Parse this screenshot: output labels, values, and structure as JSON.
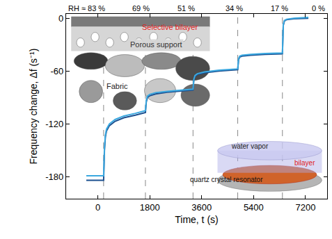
{
  "chart_data": {
    "type": "line",
    "x_label": "Time, t (s)",
    "y_label": "Frequency change, Δf (s⁻¹)",
    "x": [
      -400,
      200,
      230,
      260,
      300,
      400,
      600,
      900,
      1300,
      1650,
      1680,
      1720,
      1800,
      2000,
      2400,
      2900,
      3300,
      3330,
      3370,
      3450,
      3700,
      4200,
      4850,
      4880,
      4920,
      5000,
      5300,
      5800,
      6400,
      6430,
      6470,
      6550,
      6800,
      7300
    ],
    "series": [
      {
        "color": "#1b4f8f",
        "values": [
          -184,
          -184,
          -150,
          -135,
          -128,
          -122,
          -117,
          -113,
          -110,
          -107,
          -95,
          -90,
          -88,
          -86,
          -84,
          -82.5,
          -81.5,
          -70,
          -66,
          -64,
          -62,
          -60,
          -58.5,
          -47,
          -44,
          -43,
          -42,
          -41,
          -40.5,
          -8,
          -3,
          -1.5,
          -0.5,
          0
        ]
      },
      {
        "color": "#3aa8e0",
        "values": [
          -179,
          -179,
          -147,
          -133,
          -126,
          -120,
          -115,
          -111,
          -108,
          -105,
          -93,
          -88.5,
          -86.5,
          -84.5,
          -83,
          -81.5,
          -80.5,
          -69,
          -65,
          -63,
          -61,
          -59,
          -57.5,
          -46,
          -43,
          -42,
          -41,
          -40,
          -39.5,
          -7,
          -2.5,
          -1,
          0,
          1
        ]
      }
    ],
    "xlim": [
      -1100,
      7950
    ],
    "ylim": [
      -205,
      5
    ],
    "xticks": [
      0,
      1800,
      3600,
      5400,
      7200
    ],
    "yticks": [
      0,
      -60,
      -120,
      -180
    ],
    "grid": false,
    "vlines": [
      200,
      1650,
      3300,
      4850,
      6400
    ],
    "annotations": [
      {
        "text": "RH ≈ 83 %",
        "x": -400
      },
      {
        "text": "69 %",
        "x": 1500
      },
      {
        "text": "51 %",
        "x": 3060
      },
      {
        "text": "34 %",
        "x": 4740
      },
      {
        "text": "17 %",
        "x": 6290
      },
      {
        "text": "0 %",
        "x": 7650
      }
    ],
    "insets": {
      "membrane": {
        "top": "Selective bilayer",
        "middle": "Porous support",
        "bottom": "Fabric"
      },
      "resonator": {
        "vapor": "water vapor",
        "film": "bilayer",
        "substrate": "quartz crystal resonator"
      }
    }
  }
}
